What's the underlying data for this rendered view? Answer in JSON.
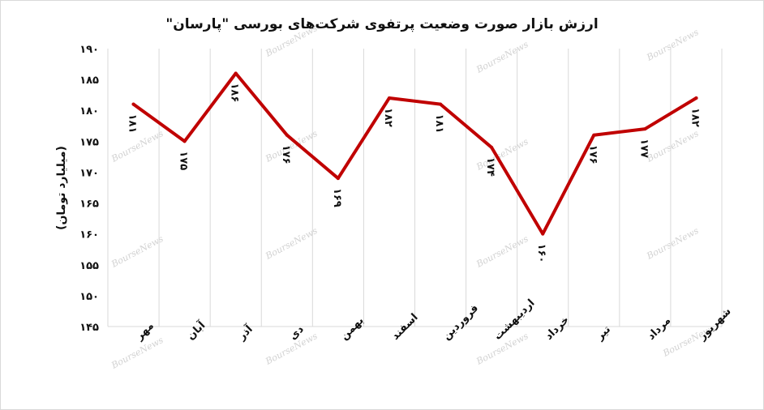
{
  "chart_data": {
    "type": "line",
    "title": "ارزش بازار صورت وضعیت پرتفوی شرکت‌های بورسی \"پارسان\"",
    "ylabel": "(میلیارد تومان)",
    "xlabel": "",
    "categories": [
      "مهر",
      "آبان",
      "آذر",
      "دی",
      "بهمن",
      "اسفند",
      "فروردین",
      "اردیبهشت",
      "خرداد",
      "تیر",
      "مرداد",
      "شهریور"
    ],
    "values": [
      181,
      175,
      186,
      176,
      169,
      182,
      181,
      174,
      160,
      176,
      177,
      182
    ],
    "data_labels": [
      "۱۸۱",
      "۱۷۵",
      "۱۸۶",
      "۱۷۶",
      "۱۶۹",
      "۱۸۲",
      "۱۸۱",
      "۱۷۴",
      "۱۶۰",
      "۱۷۶",
      "۱۷۷",
      "۱۸۲"
    ],
    "ylim": [
      145,
      190
    ],
    "yticks": [
      190,
      185,
      180,
      175,
      170,
      165,
      160,
      155,
      150,
      145
    ],
    "ytick_labels": [
      "۱۹۰",
      "۱۸۵",
      "۱۸۰",
      "۱۷۵",
      "۱۷۰",
      "۱۶۵",
      "۱۶۰",
      "۱۵۵",
      "۱۵۰",
      "۱۴۵"
    ],
    "grid": "vertical",
    "series_color": "#c00000",
    "watermark": "BourseNews"
  }
}
